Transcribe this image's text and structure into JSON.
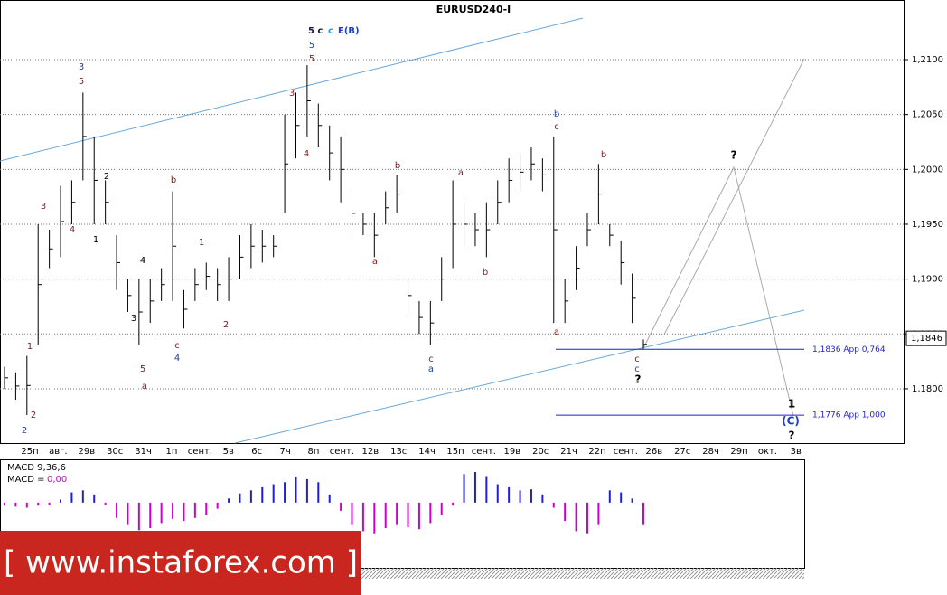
{
  "chart_data": [
    {
      "type": "ohlc",
      "title": "EURUSD240-I",
      "heading": [
        {
          "text": "5 c",
          "color": "#1a1a40"
        },
        {
          "text": "c",
          "color": "#2a9fd6"
        },
        {
          "text": "E(B)",
          "color": "#1f3fc0"
        }
      ],
      "color": "#000000",
      "grid": true,
      "ylim": [
        1.17505,
        1.21544
      ],
      "yticks": [
        {
          "value": 1.18,
          "label": "1,1800"
        },
        {
          "value": 1.185,
          "label": "1,1850"
        },
        {
          "value": 1.19,
          "label": "1,1900"
        },
        {
          "value": 1.195,
          "label": "1,1950"
        },
        {
          "value": 1.2,
          "label": "1,2000"
        },
        {
          "value": 1.205,
          "label": "1,2050"
        },
        {
          "value": 1.21,
          "label": "1,2100"
        }
      ],
      "categories": [
        "25п",
        "авг.",
        "29в",
        "30с",
        "31ч",
        "1п",
        "сент.",
        "5в",
        "6с",
        "7ч",
        "8п",
        "сент.",
        "12в",
        "13с",
        "14ч",
        "15п",
        "сент.",
        "19в",
        "20с",
        "21ч",
        "22п",
        "сент.",
        "26в",
        "27с",
        "28ч",
        "29п",
        "окт.",
        "3в"
      ],
      "high": [
        1.182,
        1.1815,
        1.183,
        1.195,
        1.1945,
        1.1985,
        1.199,
        1.207,
        1.203,
        1.199,
        1.194,
        1.19,
        1.19,
        1.19,
        1.191,
        1.198,
        1.189,
        1.191,
        1.1915,
        1.191,
        1.192,
        1.194,
        1.195,
        1.1945,
        1.194,
        1.205,
        1.207,
        1.2095,
        1.206,
        1.204,
        1.203,
        1.198,
        1.196,
        1.196,
        1.198,
        1.1995,
        1.19,
        1.188,
        1.188,
        1.192,
        1.199,
        1.197,
        1.196,
        1.197,
        1.199,
        1.201,
        1.2015,
        1.202,
        1.201,
        1.203,
        1.19,
        1.193,
        1.196,
        1.2005,
        1.195,
        1.1935,
        1.1905,
        1.1845
      ],
      "low": [
        1.18,
        1.179,
        1.1776,
        1.184,
        1.191,
        1.192,
        1.195,
        1.199,
        1.195,
        1.195,
        1.189,
        1.187,
        1.184,
        1.186,
        1.188,
        1.188,
        1.1855,
        1.188,
        1.189,
        1.188,
        1.188,
        1.19,
        1.191,
        1.1915,
        1.192,
        1.196,
        1.201,
        1.203,
        1.202,
        1.199,
        1.197,
        1.194,
        1.194,
        1.192,
        1.195,
        1.196,
        1.187,
        1.185,
        1.184,
        1.188,
        1.191,
        1.193,
        1.193,
        1.192,
        1.195,
        1.197,
        1.198,
        1.199,
        1.198,
        1.186,
        1.186,
        1.189,
        1.193,
        1.195,
        1.193,
        1.1895,
        1.186,
        1.1836
      ],
      "levels": [
        {
          "value": 1.1836,
          "label": "1,1836 App 0,764"
        },
        {
          "value": 1.1776,
          "label": "1,1776 App 1,000"
        }
      ],
      "price": {
        "value": 1.1846,
        "label": "1,1846"
      },
      "annotations": [
        {
          "text": "2",
          "color": "#1f3fa0"
        },
        {
          "text": "2",
          "color": "#7a1f1f"
        },
        {
          "text": "1",
          "color": "#7a1f1f"
        },
        {
          "text": "3",
          "color": "#7a1f1f"
        },
        {
          "text": "4",
          "color": "#7a1f1f"
        },
        {
          "text": "3",
          "color": "#1f3fa0"
        },
        {
          "text": "5",
          "color": "#7a1f1f"
        },
        {
          "text": "2",
          "color": "#000000"
        },
        {
          "text": "1",
          "color": "#000000"
        },
        {
          "text": "4",
          "color": "#000000"
        },
        {
          "text": "3",
          "color": "#000000"
        },
        {
          "text": "5",
          "color": "#7a1f1f"
        },
        {
          "text": "a",
          "color": "#7a1f1f"
        },
        {
          "text": "b",
          "color": "#7a1f1f"
        },
        {
          "text": "c",
          "color": "#7a1f1f"
        },
        {
          "text": "4",
          "color": "#1f3fa0"
        },
        {
          "text": "1",
          "color": "#7a1f1f"
        },
        {
          "text": "2",
          "color": "#7a1f1f"
        },
        {
          "text": "3",
          "color": "#7a1f1f"
        },
        {
          "text": "4",
          "color": "#7a1f1f"
        },
        {
          "text": "5",
          "color": "#1f3fa0"
        },
        {
          "text": "5",
          "color": "#7a1f1f"
        },
        {
          "text": "b",
          "color": "#7a1f1f"
        },
        {
          "text": "a",
          "color": "#7a1f1f"
        },
        {
          "text": "c",
          "color": "#7a1f1f"
        },
        {
          "text": "a",
          "color": "#1f3fa0"
        },
        {
          "text": "a",
          "color": "#7a1f1f"
        },
        {
          "text": "b",
          "color": "#7a1f1f"
        },
        {
          "text": "b",
          "color": "#1f3fa0"
        },
        {
          "text": "c",
          "color": "#7a1f1f"
        },
        {
          "text": "a",
          "color": "#7a1f1f"
        },
        {
          "text": "b",
          "color": "#7a1f1f"
        },
        {
          "text": "c",
          "color": "#7a1f1f"
        },
        {
          "text": "c",
          "color": "#1f3fa0"
        },
        {
          "text": "?",
          "color": "#000000"
        },
        {
          "text": "?",
          "color": "#000000"
        },
        {
          "text": "1",
          "color": "#000000"
        },
        {
          "text": "(C)",
          "color": "#1f3fc0"
        },
        {
          "text": "?",
          "color": "#000000"
        }
      ]
    },
    {
      "type": "bar",
      "title": "MACD 9,36,6",
      "label": "MACD =",
      "value_text": "0,00",
      "value_color": "#cc00cc",
      "colors": {
        "positive": "#1f1fd0",
        "negative": "#cc00cc"
      },
      "ylim": [
        -0.004,
        0.003
      ],
      "values": [
        -0.0003,
        -0.0004,
        -0.0005,
        -0.0003,
        -0.0002,
        0.0003,
        0.001,
        0.0012,
        0.0008,
        -0.0002,
        -0.0015,
        -0.0022,
        -0.0027,
        -0.0025,
        -0.002,
        -0.0016,
        -0.0018,
        -0.0015,
        -0.0012,
        -0.0006,
        0.0004,
        0.0009,
        0.0012,
        0.0015,
        0.0018,
        0.002,
        0.0025,
        0.0023,
        0.002,
        0.0008,
        -0.0008,
        -0.0022,
        -0.0028,
        -0.003,
        -0.0025,
        -0.0022,
        -0.0024,
        -0.0026,
        -0.002,
        -0.0012,
        -0.0003,
        0.0028,
        0.003,
        0.0026,
        0.0018,
        0.0015,
        0.0012,
        0.0013,
        0.0008,
        -0.0005,
        -0.0018,
        -0.0028,
        -0.003,
        -0.0022,
        0.0012,
        0.001,
        0.0004,
        -0.0022
      ]
    }
  ],
  "watermark": "[ www.instaforex.com ]"
}
